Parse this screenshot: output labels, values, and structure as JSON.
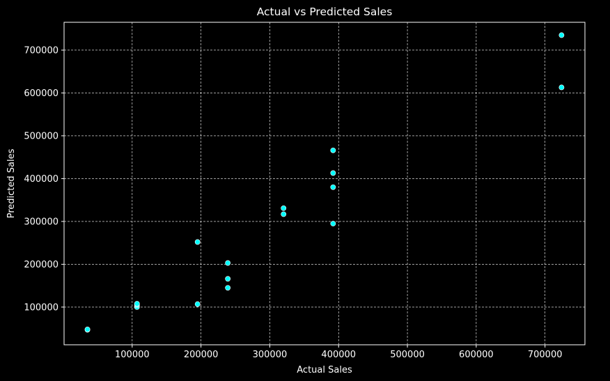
{
  "chart_data": {
    "type": "scatter",
    "title": "Actual vs Predicted Sales",
    "xlabel": "Actual Sales",
    "ylabel": "Predicted Sales",
    "xlim": [
      1000,
      758000
    ],
    "ylim": [
      12000,
      765000
    ],
    "xticks": [
      100000,
      200000,
      300000,
      400000,
      500000,
      600000,
      700000
    ],
    "yticks": [
      100000,
      200000,
      300000,
      400000,
      500000,
      600000,
      700000
    ],
    "xtick_labels": [
      "100000",
      "200000",
      "300000",
      "400000",
      "500000",
      "600000",
      "700000"
    ],
    "ytick_labels": [
      "100000",
      "200000",
      "300000",
      "400000",
      "500000",
      "600000",
      "700000"
    ],
    "grid": true,
    "colors": {
      "background": "#000000",
      "marker": "#00ffff",
      "marker_edge": "#ffffff",
      "text": "#ffffff",
      "grid": "#ffffff"
    },
    "series": [
      {
        "x": [
          35000,
          35000,
          107000,
          107000,
          107000,
          107000,
          195000,
          195000,
          239000,
          239000,
          239000,
          320000,
          320000,
          392000,
          392000,
          392000,
          392000,
          724000,
          724000
        ],
        "y": [
          47000,
          48000,
          100000,
          104000,
          106000,
          108000,
          107000,
          252000,
          145000,
          166000,
          203000,
          317000,
          331000,
          295000,
          380000,
          413000,
          466000,
          613000,
          735000
        ]
      }
    ]
  }
}
